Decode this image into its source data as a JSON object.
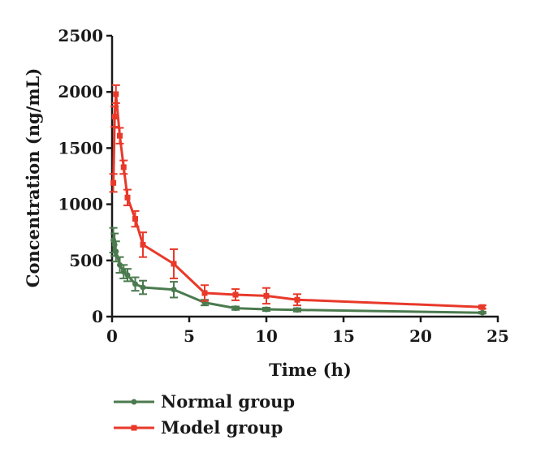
{
  "chart_data": {
    "type": "line",
    "title": "",
    "xlabel": "Time (h)",
    "ylabel": "Concentration (ng/mL)",
    "xlim": [
      0,
      25
    ],
    "ylim": [
      0,
      2500
    ],
    "xticks": [
      0,
      5,
      10,
      15,
      20,
      25
    ],
    "yticks": [
      0,
      500,
      1000,
      1500,
      2000,
      2500
    ],
    "x_tick_labels": [
      "0",
      "5",
      "10",
      "15",
      "20",
      "25"
    ],
    "y_tick_labels": [
      "0",
      "500",
      "1000",
      "1500",
      "2000",
      "2500"
    ],
    "grid": false,
    "legend_position": "bottom-left",
    "series": [
      {
        "name": "Normal group",
        "color": "#4a7a4e",
        "marker": "circle",
        "x": [
          0.083,
          0.167,
          0.25,
          0.5,
          0.75,
          1,
          1.5,
          2,
          4,
          6,
          8,
          10,
          12,
          24
        ],
        "y": [
          680,
          640,
          580,
          460,
          400,
          370,
          290,
          260,
          240,
          125,
          75,
          65,
          60,
          35
        ],
        "error": [
          110,
          100,
          90,
          70,
          60,
          55,
          60,
          60,
          70,
          25,
          15,
          15,
          15,
          8
        ]
      },
      {
        "name": "Model group",
        "color": "#e8392a",
        "marker": "square",
        "x": [
          0.083,
          0.167,
          0.25,
          0.5,
          0.75,
          1,
          1.5,
          2,
          4,
          6,
          8,
          10,
          12,
          24
        ],
        "y": [
          1190,
          1780,
          1980,
          1610,
          1330,
          1060,
          870,
          640,
          470,
          210,
          195,
          185,
          150,
          85
        ],
        "error": [
          80,
          90,
          80,
          70,
          60,
          70,
          70,
          110,
          130,
          70,
          50,
          70,
          50,
          15
        ]
      }
    ]
  },
  "colors": {
    "axis": "#1a1a1a"
  }
}
